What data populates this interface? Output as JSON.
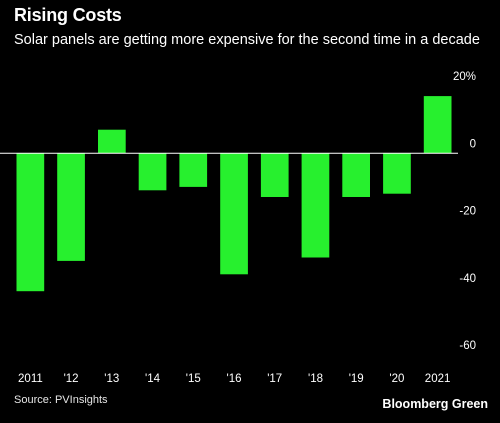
{
  "header": {
    "title": "Rising Costs",
    "subtitle": "Solar panels are getting more expensive for the second time in a decade"
  },
  "footer": {
    "source": "Source: PVInsights",
    "brand": "Bloomberg Green"
  },
  "colors": {
    "bar": "#27f02e",
    "zero_line": "#ffffff",
    "background": "#000000"
  },
  "chart_data": {
    "type": "bar",
    "title": "Rising Costs",
    "subtitle": "Solar panels are getting more expensive for the second time in a decade",
    "categories": [
      "2011",
      "'12",
      "'13",
      "'14",
      "'15",
      "'16",
      "'17",
      "'18",
      "'19",
      "'20",
      "2021"
    ],
    "values": [
      -41,
      -32,
      7,
      -11,
      -10,
      -36,
      -13,
      -31,
      -13,
      -12,
      17
    ],
    "ylim": [
      -60,
      20
    ],
    "yticks": [
      20,
      0,
      -20,
      -40,
      -60
    ],
    "ytick_labels": [
      "20%",
      "0",
      "-20",
      "-40",
      "-60"
    ],
    "xlabel": "",
    "ylabel": "",
    "grid": false
  }
}
